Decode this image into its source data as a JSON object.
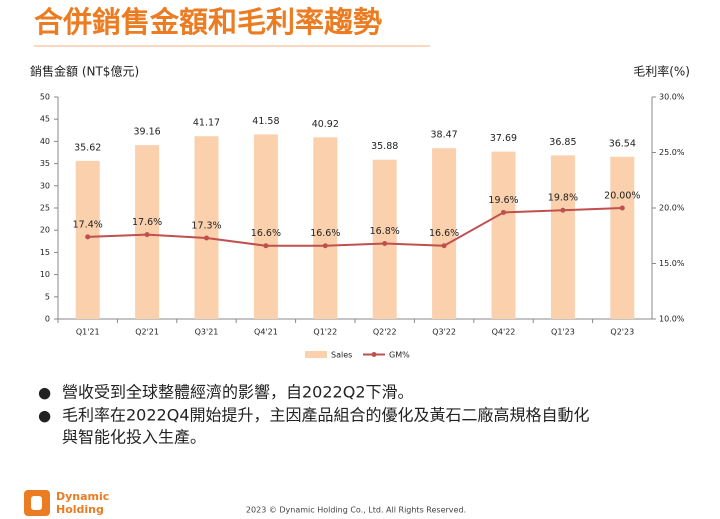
{
  "header": {
    "title": "合併銷售金額和毛利率趨勢"
  },
  "chart_data": {
    "type": "combo",
    "ylabel": "銷售金額 (NT$億元)",
    "y2label": "毛利率(%)",
    "categories": [
      "Q1'21",
      "Q2'21",
      "Q3'21",
      "Q4'21",
      "Q1'22",
      "Q2'22",
      "Q3'22",
      "Q4'22",
      "Q1'23",
      "Q2'23"
    ],
    "series": [
      {
        "name": "Sales",
        "type": "bar",
        "color": "#fbd0ad",
        "values": [
          35.62,
          39.16,
          41.17,
          41.58,
          40.92,
          35.88,
          38.47,
          37.69,
          36.85,
          36.54
        ]
      },
      {
        "name": "GM%",
        "type": "line",
        "axis": "y2",
        "color": "#c0504d",
        "values": [
          17.4,
          17.6,
          17.3,
          16.6,
          16.6,
          16.8,
          16.6,
          19.6,
          19.8,
          20.0
        ],
        "value_labels": [
          "17.4%",
          "17.6%",
          "17.3%",
          "16.6%",
          "16.6%",
          "16.8%",
          "16.6%",
          "19.6%",
          "19.8%",
          "20.00%"
        ]
      }
    ],
    "ylim": [
      0,
      50
    ],
    "yticks": [
      0,
      5,
      10,
      15,
      20,
      25,
      30,
      35,
      40,
      45,
      50
    ],
    "y2lim": [
      10,
      30
    ],
    "y2ticks": [
      {
        "value": 10,
        "label": "10.0%"
      },
      {
        "value": 15,
        "label": "15.0%"
      },
      {
        "value": 20,
        "label": "20.0%"
      },
      {
        "value": 25,
        "label": "25.0%"
      },
      {
        "value": 30,
        "label": "30.0%"
      }
    ],
    "legend": "bottom"
  },
  "bullets": [
    "營收受到全球整體經濟的影響，自2022Q2下滑。",
    "毛利率在2022Q4開始提升，主因產品組合的優化及黃石二廠高規格自動化",
    "與智能化投入生產。"
  ],
  "footer": {
    "logo": [
      "Dynamic",
      "Holding"
    ],
    "copyright": "2023 © Dynamic Holding Co., Ltd. All Rights Reserved."
  }
}
